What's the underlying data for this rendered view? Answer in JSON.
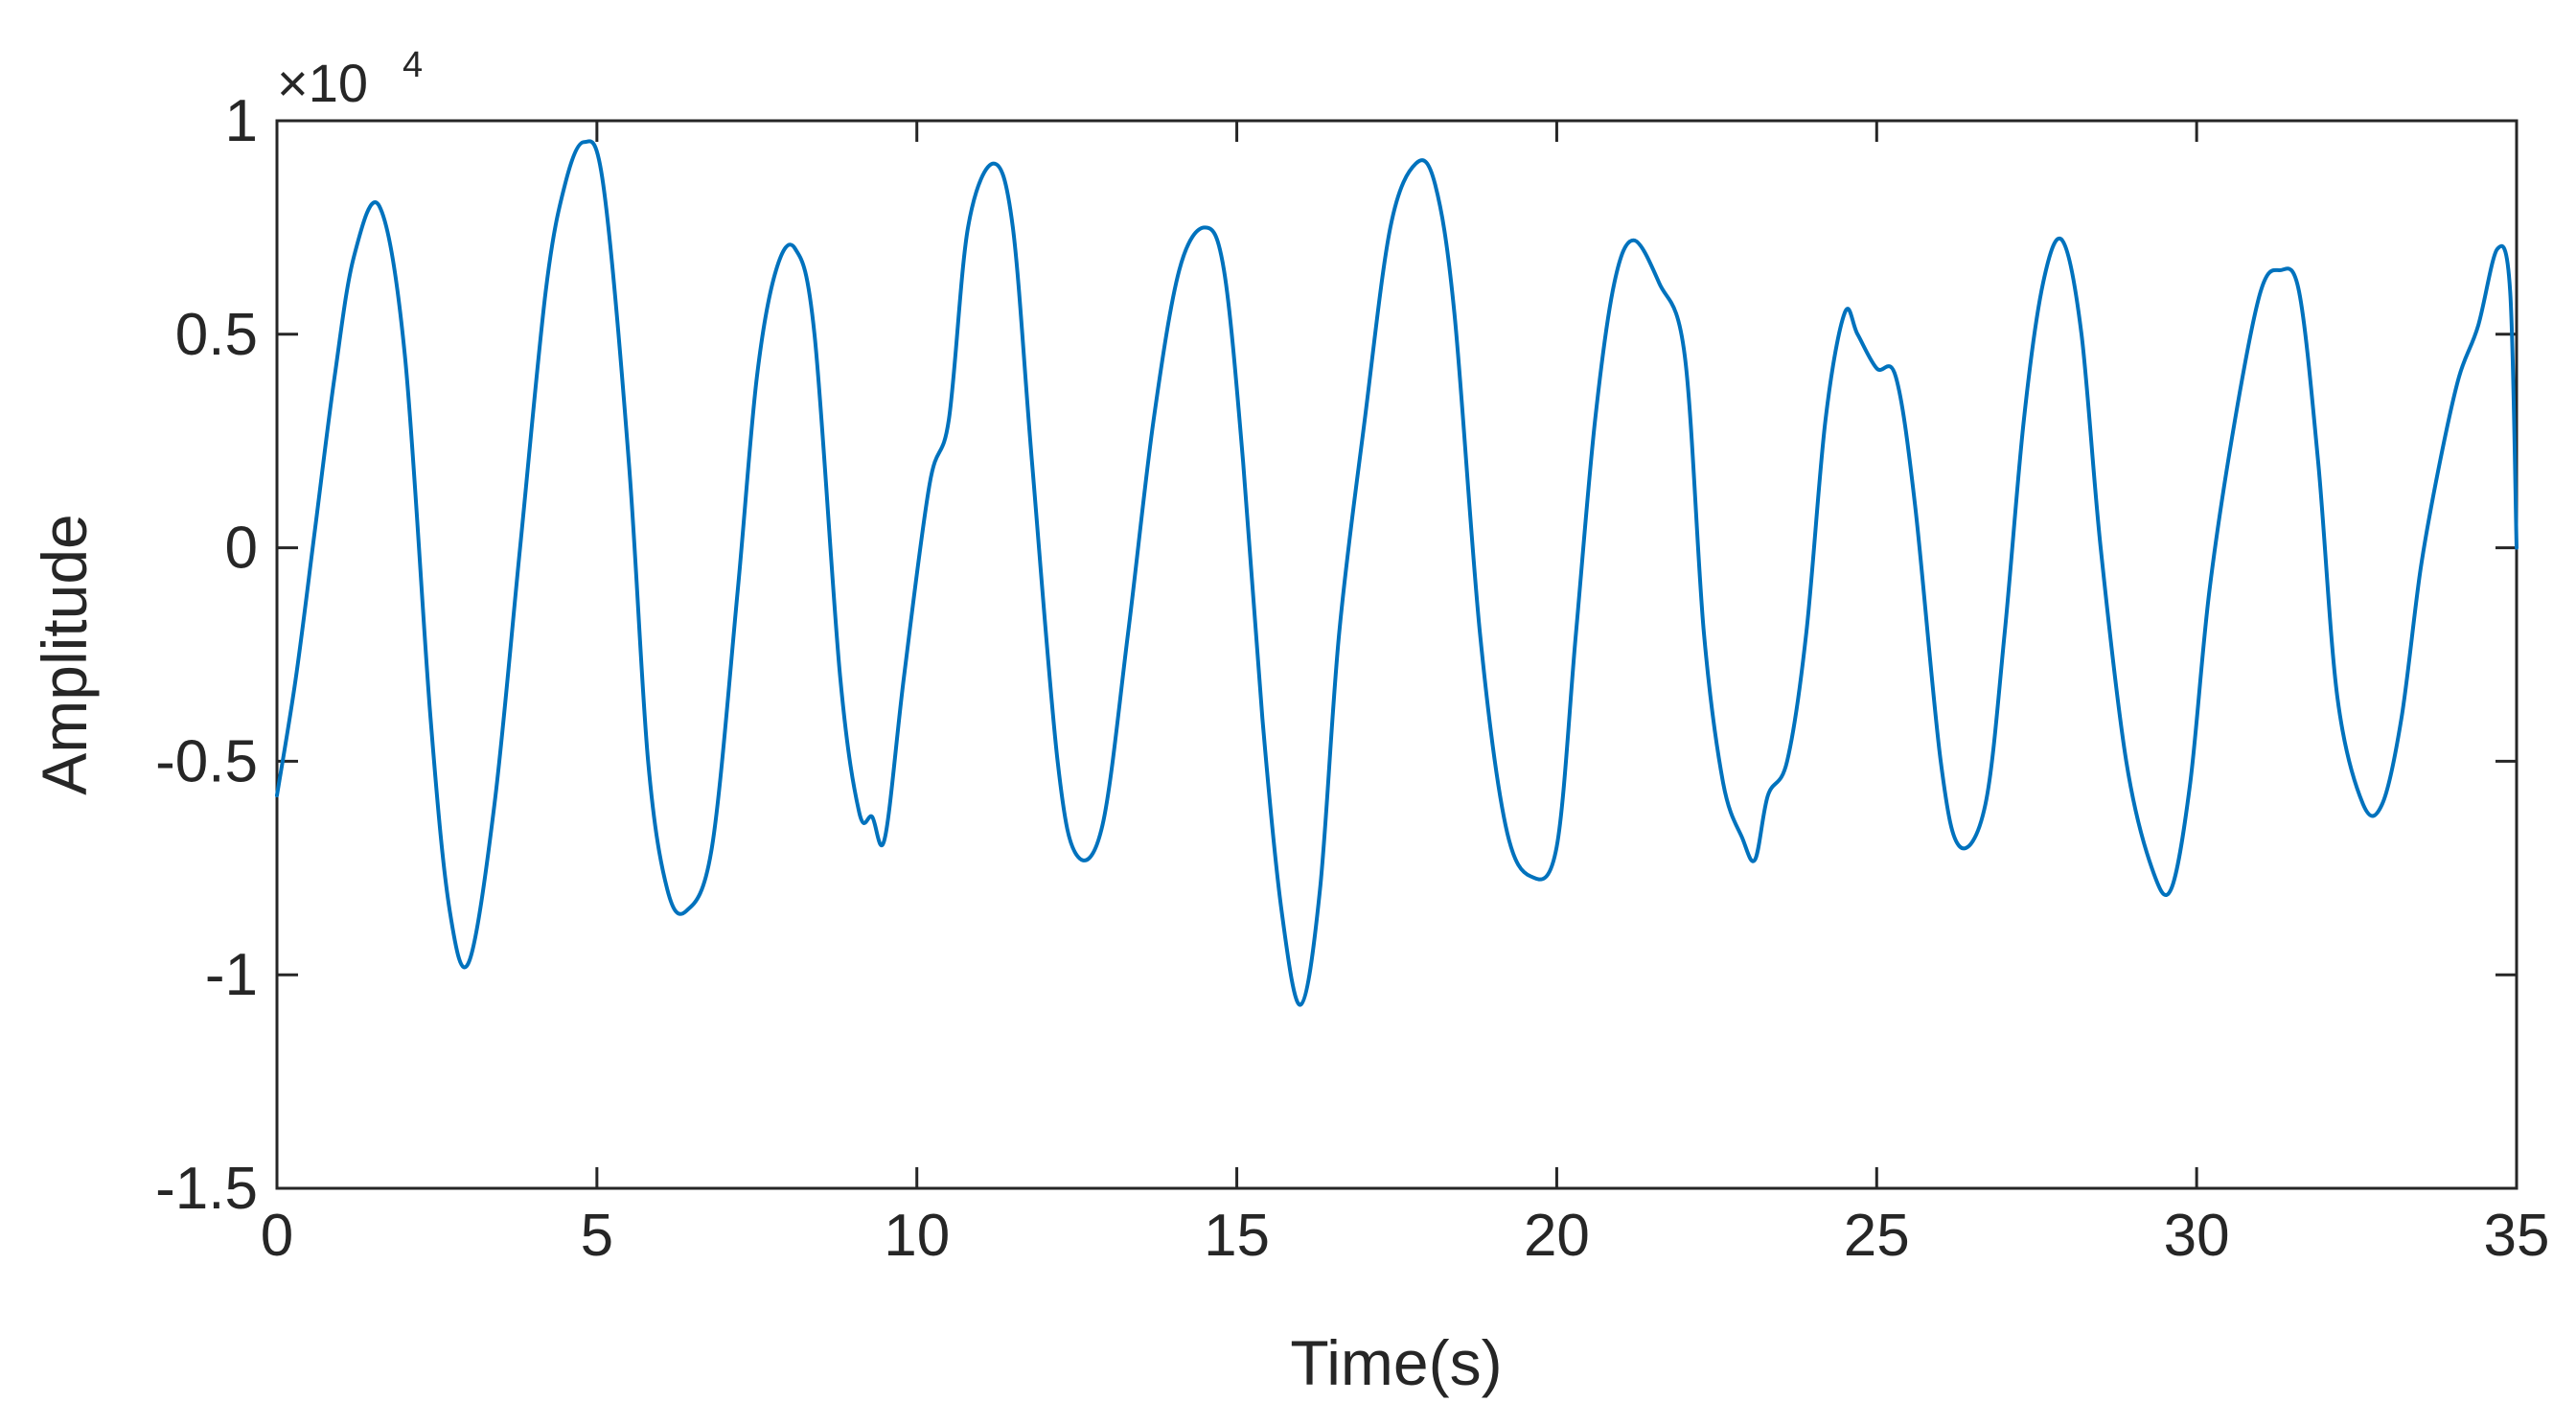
{
  "chart_data": {
    "type": "line",
    "xlabel": "Time(s)",
    "ylabel": "Amplitude",
    "exponent_base": "×10",
    "exponent_power": "4",
    "xlim": [
      0,
      35
    ],
    "ylim": [
      -1.5,
      1
    ],
    "xticks": [
      0,
      5,
      10,
      15,
      20,
      25,
      30,
      35
    ],
    "xtick_labels": [
      "0",
      "5",
      "10",
      "15",
      "20",
      "25",
      "30",
      "35"
    ],
    "yticks": [
      -1.5,
      -1,
      -0.5,
      0,
      0.5,
      1
    ],
    "ytick_labels": [
      "-1.5",
      "-1",
      "-0.5",
      "0",
      "0.5",
      "1"
    ],
    "grid": false,
    "line_color": "#0072BD",
    "series": [
      {
        "x": [
          0,
          0.3,
          0.6,
          0.9,
          1.2,
          1.6,
          2.0,
          2.4,
          2.7,
          3.0,
          3.4,
          3.8,
          4.2,
          4.5,
          4.8,
          5.1,
          5.5,
          5.8,
          6.1,
          6.4,
          6.8,
          7.2,
          7.5,
          7.8,
          8.1,
          8.4,
          8.8,
          9.1,
          9.3,
          9.5,
          9.8,
          10.2,
          10.5,
          10.8,
          11.2,
          11.5,
          11.8,
          12.2,
          12.5,
          12.9,
          13.3,
          13.7,
          14.1,
          14.5,
          14.8,
          15.1,
          15.4,
          15.7,
          16.0,
          16.3,
          16.6,
          17.0,
          17.4,
          17.8,
          18.1,
          18.4,
          18.8,
          19.2,
          19.6,
          20.0,
          20.3,
          20.6,
          20.9,
          21.2,
          21.6,
          22.0,
          22.3,
          22.6,
          22.9,
          23.1,
          23.3,
          23.6,
          23.9,
          24.2,
          24.5,
          24.7,
          25.0,
          25.3,
          25.6,
          26.0,
          26.3,
          26.7,
          27.0,
          27.3,
          27.6,
          27.9,
          28.2,
          28.5,
          28.9,
          29.3,
          29.6,
          29.9,
          30.2,
          30.6,
          31.0,
          31.3,
          31.6,
          31.9,
          32.2,
          32.6,
          32.9,
          33.2,
          33.5,
          33.8,
          34.1,
          34.4,
          34.7,
          34.9,
          35.0
        ],
        "y": [
          -0.58,
          -0.3,
          0.05,
          0.4,
          0.68,
          0.8,
          0.45,
          -0.4,
          -0.85,
          -0.97,
          -0.6,
          0.0,
          0.6,
          0.85,
          0.95,
          0.85,
          0.2,
          -0.5,
          -0.8,
          -0.85,
          -0.7,
          -0.1,
          0.4,
          0.65,
          0.7,
          0.5,
          -0.3,
          -0.62,
          -0.63,
          -0.68,
          -0.3,
          0.15,
          0.3,
          0.75,
          0.9,
          0.75,
          0.2,
          -0.5,
          -0.72,
          -0.65,
          -0.2,
          0.3,
          0.65,
          0.75,
          0.65,
          0.2,
          -0.4,
          -0.85,
          -1.07,
          -0.8,
          -0.2,
          0.3,
          0.75,
          0.9,
          0.85,
          0.55,
          -0.2,
          -0.65,
          -0.77,
          -0.7,
          -0.2,
          0.3,
          0.62,
          0.72,
          0.62,
          0.45,
          -0.2,
          -0.55,
          -0.68,
          -0.73,
          -0.58,
          -0.5,
          -0.2,
          0.3,
          0.55,
          0.5,
          0.42,
          0.4,
          0.1,
          -0.5,
          -0.7,
          -0.6,
          -0.2,
          0.3,
          0.62,
          0.72,
          0.5,
          0.0,
          -0.5,
          -0.75,
          -0.8,
          -0.55,
          -0.1,
          0.3,
          0.6,
          0.65,
          0.6,
          0.2,
          -0.35,
          -0.6,
          -0.6,
          -0.4,
          -0.05,
          0.2,
          0.4,
          0.52,
          0.7,
          0.6,
          0.0
        ]
      }
    ]
  }
}
